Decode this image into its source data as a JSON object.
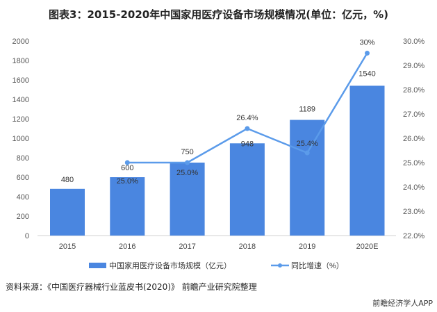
{
  "title": "图表3：2015-2020年中国家用医疗设备市场规模情况(单位：亿元，%)",
  "source": "资料来源：《中国医疗器械行业蓝皮书(2020)》 前瞻产业研究院整理",
  "brand": "前瞻经济学人APP",
  "chart_data": {
    "type": "bar+line",
    "categories": [
      "2015",
      "2016",
      "2017",
      "2018",
      "2019",
      "2020E"
    ],
    "series": [
      {
        "name": "中国家用医疗设备市场规模（亿元）",
        "type": "bar",
        "axis": "left",
        "color": "#4A86E0",
        "values": [
          480,
          600,
          750,
          948,
          1189,
          1540
        ],
        "labels": [
          "480",
          "600",
          "750",
          "948",
          "1189",
          "1540"
        ]
      },
      {
        "name": "同比增速（%）",
        "type": "line",
        "axis": "right",
        "color": "#5B9BEA",
        "values": [
          null,
          25.0,
          25.0,
          26.4,
          25.4,
          29.5
        ],
        "labels": [
          "",
          "25.0%",
          "25.0%",
          "26.4%",
          "25.4%",
          "30%"
        ]
      }
    ],
    "left_axis": {
      "range": [
        0,
        2000
      ],
      "ticks": [
        "0",
        "200",
        "400",
        "600",
        "800",
        "1000",
        "1200",
        "1400",
        "1600",
        "1800",
        "2000"
      ]
    },
    "right_axis": {
      "range": [
        22,
        30
      ],
      "ticks": [
        "22.0%",
        "23.0%",
        "24.0%",
        "25.0%",
        "26.0%",
        "27.0%",
        "28.0%",
        "29.0%",
        "30.0%"
      ]
    },
    "grid": false,
    "legend": "bottom"
  }
}
